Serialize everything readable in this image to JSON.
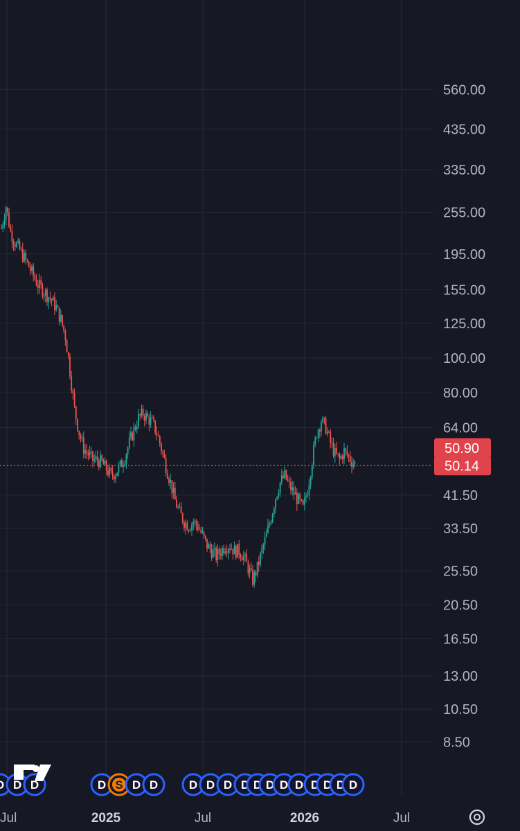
{
  "colors": {
    "background": "#161923",
    "grid": "#262a35",
    "up": "#26a69a",
    "down": "#ef5350",
    "axis_text": "#b2b5be",
    "label_bg": "#e0434c",
    "dividend_marker": "#2962ff",
    "split_marker": "#f57c00"
  },
  "icons": {
    "logo": "tradingview-logo-icon",
    "settings": "gear-icon"
  },
  "chart_data": {
    "type": "candlestick",
    "title": "",
    "xlabel": "",
    "ylabel": "",
    "y_scale": "log",
    "ylim": [
      7.6,
      640
    ],
    "y_ticks": [
      "560.00",
      "435.00",
      "335.00",
      "255.00",
      "195.00",
      "155.00",
      "125.00",
      "100.00",
      "80.00",
      "64.00",
      "41.50",
      "33.50",
      "25.50",
      "20.50",
      "16.50",
      "13.00",
      "10.50",
      "8.50"
    ],
    "x_ticks": [
      "Jul",
      "2025",
      "Jul",
      "2026",
      "Jul"
    ],
    "x_tick_bold": [
      false,
      true,
      false,
      true,
      false
    ],
    "grid": true,
    "price_labels": [
      {
        "value": "50.90",
        "role": "last-price"
      },
      {
        "value": "50.14",
        "role": "reference-price"
      }
    ],
    "reference_line": 50.14,
    "anchors": [
      [
        0,
        230
      ],
      [
        3,
        265
      ],
      [
        6,
        225
      ],
      [
        9,
        210
      ],
      [
        12,
        200
      ],
      [
        15,
        190
      ],
      [
        18,
        180
      ],
      [
        21,
        170
      ],
      [
        24,
        160
      ],
      [
        27,
        155
      ],
      [
        30,
        150
      ],
      [
        33,
        145
      ],
      [
        36,
        138
      ],
      [
        39,
        128
      ],
      [
        42,
        115
      ],
      [
        44,
        100
      ],
      [
        46,
        85
      ],
      [
        48,
        72
      ],
      [
        51,
        62
      ],
      [
        54,
        56
      ],
      [
        57,
        54
      ],
      [
        60,
        52
      ],
      [
        63,
        52
      ],
      [
        66,
        51
      ],
      [
        69,
        49
      ],
      [
        72,
        47
      ],
      [
        75,
        48
      ],
      [
        78,
        50
      ],
      [
        81,
        53
      ],
      [
        84,
        58
      ],
      [
        87,
        63
      ],
      [
        90,
        68
      ],
      [
        93,
        70
      ],
      [
        96,
        68
      ],
      [
        99,
        66
      ],
      [
        102,
        62
      ],
      [
        105,
        56
      ],
      [
        108,
        50
      ],
      [
        111,
        45
      ],
      [
        114,
        40
      ],
      [
        117,
        37
      ],
      [
        120,
        35
      ],
      [
        123,
        34
      ],
      [
        126,
        35
      ],
      [
        129,
        34
      ],
      [
        132,
        32
      ],
      [
        135,
        30
      ],
      [
        138,
        29
      ],
      [
        141,
        28
      ],
      [
        144,
        29
      ],
      [
        147,
        30
      ],
      [
        150,
        30
      ],
      [
        153,
        29
      ],
      [
        156,
        29
      ],
      [
        159,
        28
      ],
      [
        162,
        26
      ],
      [
        165,
        24
      ],
      [
        168,
        26
      ],
      [
        171,
        29
      ],
      [
        174,
        32
      ],
      [
        177,
        36
      ],
      [
        180,
        41
      ],
      [
        183,
        45
      ],
      [
        186,
        47
      ],
      [
        189,
        44
      ],
      [
        192,
        42
      ],
      [
        195,
        40
      ],
      [
        198,
        38
      ],
      [
        201,
        43
      ],
      [
        204,
        52
      ],
      [
        207,
        62
      ],
      [
        210,
        67
      ],
      [
        213,
        64
      ],
      [
        216,
        58
      ],
      [
        219,
        54
      ],
      [
        222,
        52
      ],
      [
        225,
        55
      ],
      [
        228,
        53
      ],
      [
        231,
        51
      ],
      [
        232,
        50.9
      ]
    ],
    "event_markers": [
      {
        "letter": "D"
      },
      {
        "letter": "D"
      },
      {
        "letter": "D"
      },
      {
        "letter": "D"
      },
      {
        "letter": "S"
      },
      {
        "letter": "D"
      },
      {
        "letter": "D"
      },
      {
        "letter": "D"
      },
      {
        "letter": "D"
      },
      {
        "letter": "D"
      },
      {
        "letter": "D"
      },
      {
        "letter": "D"
      },
      {
        "letter": "D"
      },
      {
        "letter": "D"
      },
      {
        "letter": "D"
      },
      {
        "letter": "D"
      },
      {
        "letter": "D"
      },
      {
        "letter": "D"
      },
      {
        "letter": "D"
      }
    ]
  }
}
